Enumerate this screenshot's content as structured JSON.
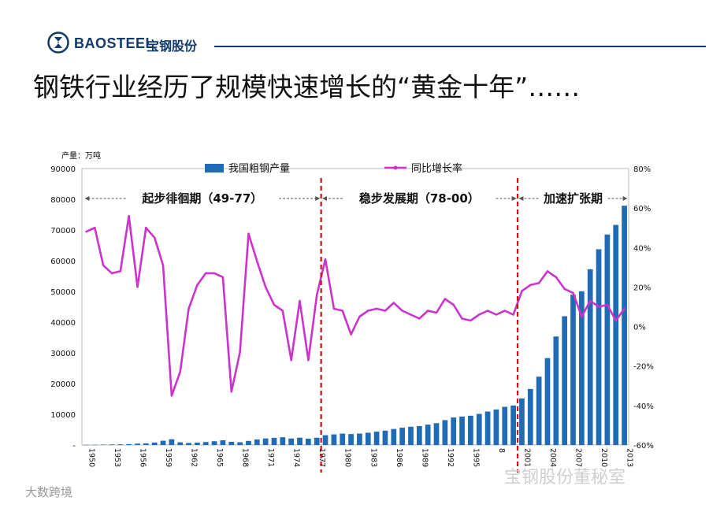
{
  "header": {
    "brand_en": "BAOSTEEL",
    "brand_cn": "宝钢股份",
    "slide_title": "钢铁行业经历了规模快速增长的“黄金十年”……"
  },
  "watermarks": {
    "left": "大数跨境",
    "right": "宝钢股份董秘室"
  },
  "colors": {
    "bar": "#1f6bb5",
    "line": "#cc33cc",
    "divider": "#cc1111",
    "brand": "#123a6b"
  },
  "chart_data": {
    "type": "bar+line",
    "unit_label": "产量：万吨",
    "legend": [
      {
        "name": "我国粗钢产量",
        "kind": "bar"
      },
      {
        "name": "同比增长率",
        "kind": "line"
      }
    ],
    "y_left": {
      "min": 0,
      "max": 90000,
      "ticks": [
        "90000",
        "80000",
        "70000",
        "60000",
        "50000",
        "40000",
        "30000",
        "20000",
        "10000",
        "-"
      ]
    },
    "y_right": {
      "min": -60,
      "max": 80,
      "ticks": [
        "80%",
        "60%",
        "40%",
        "20%",
        "0%",
        "-20%",
        "-40%",
        "-60%"
      ]
    },
    "x_tick_labels": [
      {
        "year": 1950,
        "label": "1950"
      },
      {
        "year": 1953,
        "label": "1953"
      },
      {
        "year": 1956,
        "label": "1956"
      },
      {
        "year": 1959,
        "label": "1959"
      },
      {
        "year": 1962,
        "label": "1962"
      },
      {
        "year": 1965,
        "label": "1965"
      },
      {
        "year": 1968,
        "label": "1968"
      },
      {
        "year": 1971,
        "label": "1971"
      },
      {
        "year": 1974,
        "label": "1974"
      },
      {
        "year": 1977,
        "label": "1977"
      },
      {
        "year": 1980,
        "label": "1980"
      },
      {
        "year": 1983,
        "label": "1983"
      },
      {
        "year": 1986,
        "label": "1986"
      },
      {
        "year": 1989,
        "label": "1989"
      },
      {
        "year": 1992,
        "label": "1992"
      },
      {
        "year": 1995,
        "label": "1995"
      },
      {
        "year": 1998,
        "label": "8"
      },
      {
        "year": 2001,
        "label": "2001"
      },
      {
        "year": 2004,
        "label": "2004"
      },
      {
        "year": 2007,
        "label": "2007"
      },
      {
        "year": 2010,
        "label": "2010"
      },
      {
        "year": 2013,
        "label": "2013"
      }
    ],
    "years": [
      1950,
      1951,
      1952,
      1953,
      1954,
      1955,
      1956,
      1957,
      1958,
      1959,
      1960,
      1961,
      1962,
      1963,
      1964,
      1965,
      1966,
      1967,
      1968,
      1969,
      1970,
      1971,
      1972,
      1973,
      1974,
      1975,
      1976,
      1977,
      1978,
      1979,
      1980,
      1981,
      1982,
      1983,
      1984,
      1985,
      1986,
      1987,
      1988,
      1989,
      1990,
      1991,
      1992,
      1993,
      1994,
      1995,
      1996,
      1997,
      1998,
      1999,
      2000,
      2001,
      2002,
      2003,
      2004,
      2005,
      2006,
      2007,
      2008,
      2009,
      2010,
      2011,
      2012,
      2013
    ],
    "production": [
      61,
      90,
      135,
      177,
      223,
      285,
      447,
      535,
      800,
      1387,
      1866,
      870,
      667,
      762,
      964,
      1223,
      1532,
      1029,
      904,
      1333,
      1779,
      2132,
      2338,
      2522,
      2112,
      2390,
      2046,
      2374,
      3178,
      3448,
      3712,
      3560,
      3716,
      4002,
      4347,
      4679,
      5220,
      5628,
      5943,
      6159,
      6635,
      7100,
      8093,
      8956,
      9261,
      9536,
      10124,
      10894,
      11559,
      12426,
      12850,
      15163,
      18237,
      22234,
      28291,
      35324,
      41915,
      48929,
      50049,
      57218,
      63723,
      68528,
      71654,
      77904
    ],
    "growth_rate": [
      48,
      50,
      31,
      27,
      28,
      56,
      20,
      50,
      45,
      31,
      -35,
      -23,
      9,
      21,
      27,
      27,
      25,
      -33,
      -13,
      47,
      33,
      20,
      11,
      8,
      -17,
      13,
      -17,
      16,
      34,
      9,
      8,
      -4,
      5,
      8,
      9,
      8,
      12,
      8,
      6,
      4,
      8,
      7,
      14,
      11,
      4,
      3,
      6,
      8,
      6,
      8,
      6,
      18,
      21,
      22,
      28,
      25,
      19,
      17,
      5,
      13,
      10,
      11,
      3,
      9
    ],
    "periods": [
      {
        "label": "起步徘徊期（49-77）",
        "from": 1949,
        "to": 1977
      },
      {
        "label": "稳步发展期（78-00）",
        "from": 1978,
        "to": 2000
      },
      {
        "label": "加速扩张期",
        "from": 2001,
        "to": 2013
      }
    ],
    "dividers": [
      1977.5,
      2000.5
    ]
  }
}
